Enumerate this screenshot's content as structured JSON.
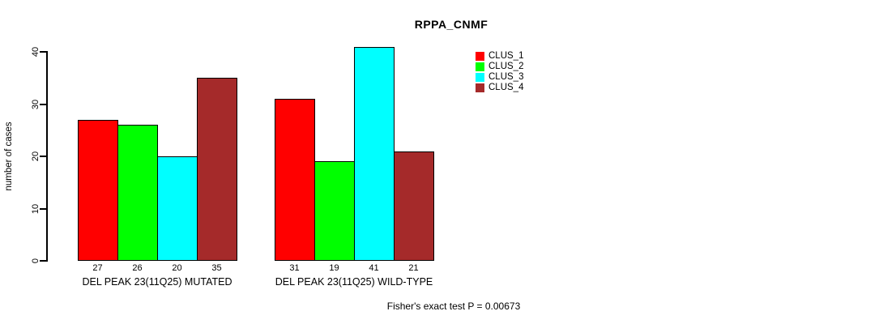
{
  "title": "RPPA_CNMF",
  "footer": "Fisher's exact test P = 0.00673",
  "chart_data": {
    "type": "bar",
    "title": "RPPA_CNMF",
    "xlabel": "",
    "ylabel": "number of cases",
    "ylim": [
      0,
      42
    ],
    "yticks": [
      0,
      10,
      20,
      30,
      40
    ],
    "grid": false,
    "legend_position": "right",
    "categories": [
      "DEL PEAK 23(11Q25) MUTATED",
      "DEL PEAK 23(11Q25) WILD-TYPE"
    ],
    "series": [
      {
        "name": "CLUS_1",
        "color": "#FF0000",
        "values": [
          27,
          31
        ]
      },
      {
        "name": "CLUS_2",
        "color": "#00FF00",
        "values": [
          26,
          19
        ]
      },
      {
        "name": "CLUS_3",
        "color": "#00FFFF",
        "values": [
          20,
          41
        ]
      },
      {
        "name": "CLUS_4",
        "color": "#A52A2A",
        "values": [
          35,
          21
        ]
      }
    ],
    "groups": [
      {
        "label": "DEL PEAK 23(11Q25) MUTATED",
        "values": [
          27,
          26,
          20,
          35
        ]
      },
      {
        "label": "DEL PEAK 23(11Q25) WILD-TYPE",
        "values": [
          31,
          19,
          41,
          21
        ]
      }
    ],
    "bar_value_labels_shown": true,
    "annotation": "Fisher's exact test P = 0.00673"
  }
}
